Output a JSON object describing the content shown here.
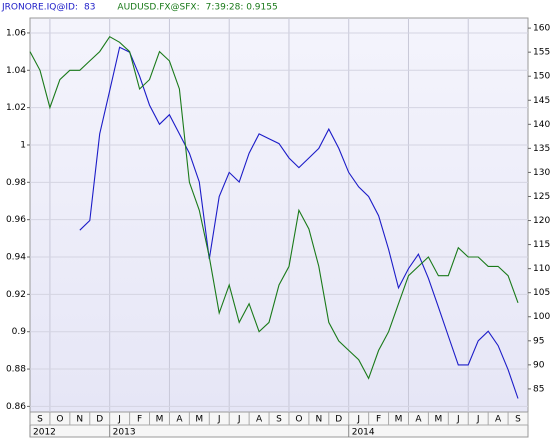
{
  "chart_data": {
    "type": "line",
    "series": [
      {
        "name": "JRONORE.IQ@ID:",
        "last_label": "83",
        "color": "#1c1cc8",
        "axis": "y2",
        "values": [
          null,
          null,
          null,
          null,
          null,
          118,
          120,
          138,
          147,
          156,
          155,
          150,
          144,
          140,
          142,
          138,
          134,
          128,
          112,
          125,
          130,
          128,
          134,
          138,
          137,
          136,
          133,
          131,
          133,
          135,
          139,
          135,
          130,
          127,
          125,
          121,
          114,
          106,
          110,
          113,
          108,
          102,
          96,
          90,
          90,
          95,
          97,
          94,
          89,
          83
        ]
      },
      {
        "name": "AUDUSD.FX@SFX:",
        "last_label": "7:39:28: 0.9155",
        "color": "#1a7a1a",
        "axis": "y",
        "values": [
          1.05,
          1.04,
          1.02,
          1.035,
          1.04,
          1.04,
          1.045,
          1.05,
          1.058,
          1.055,
          1.05,
          1.03,
          1.035,
          1.05,
          1.045,
          1.03,
          0.98,
          0.965,
          0.94,
          0.91,
          0.925,
          0.905,
          0.915,
          0.9,
          0.905,
          0.925,
          0.935,
          0.965,
          0.955,
          0.935,
          0.905,
          0.895,
          0.89,
          0.885,
          0.875,
          0.89,
          0.9,
          0.915,
          0.93,
          0.935,
          0.94,
          0.93,
          0.93,
          0.945,
          0.94,
          0.94,
          0.935,
          0.935,
          0.93,
          0.9155
        ]
      }
    ],
    "x": [
      0,
      0.5,
      1,
      1.5,
      2,
      2.5,
      3,
      3.5,
      4,
      4.5,
      5,
      5.5,
      6,
      6.5,
      7,
      7.5,
      8,
      8.5,
      9,
      9.5,
      10,
      10.5,
      11,
      11.5,
      12,
      12.5,
      13,
      13.5,
      14,
      14.5,
      15,
      15.5,
      16,
      16.5,
      17,
      17.5,
      18,
      18.5,
      19,
      19.5,
      20,
      20.5,
      21,
      21.5,
      22,
      22.5,
      23,
      23.5,
      24,
      24.5
    ],
    "xlim": [
      0,
      25
    ],
    "xticks": [
      {
        "value": 0.5,
        "label": "S"
      },
      {
        "value": 1.5,
        "label": "O"
      },
      {
        "value": 2.5,
        "label": "N"
      },
      {
        "value": 3.5,
        "label": "D"
      },
      {
        "value": 4.5,
        "label": "J"
      },
      {
        "value": 5.5,
        "label": "F"
      },
      {
        "value": 6.5,
        "label": "M"
      },
      {
        "value": 7.5,
        "label": "A"
      },
      {
        "value": 8.5,
        "label": "M"
      },
      {
        "value": 9.5,
        "label": "J"
      },
      {
        "value": 10.5,
        "label": "J"
      },
      {
        "value": 11.5,
        "label": "A"
      },
      {
        "value": 12.5,
        "label": "S"
      },
      {
        "value": 13.5,
        "label": "O"
      },
      {
        "value": 14.5,
        "label": "N"
      },
      {
        "value": 15.5,
        "label": "D"
      },
      {
        "value": 16.5,
        "label": "J"
      },
      {
        "value": 17.5,
        "label": "F"
      },
      {
        "value": 18.5,
        "label": "M"
      },
      {
        "value": 19.5,
        "label": "A"
      },
      {
        "value": 20.5,
        "label": "M"
      },
      {
        "value": 21.5,
        "label": "J"
      },
      {
        "value": 22.5,
        "label": "J"
      },
      {
        "value": 23.5,
        "label": "A"
      },
      {
        "value": 24.5,
        "label": "S"
      }
    ],
    "year_ticks": [
      {
        "value": 0,
        "label": "2012"
      },
      {
        "value": 4,
        "label": "2013"
      },
      {
        "value": 16,
        "label": "2014"
      }
    ],
    "xgrid": [
      1,
      4,
      7,
      10,
      13,
      16,
      19,
      22
    ],
    "ylim": [
      0.857,
      1.068
    ],
    "yticks": [
      0.86,
      0.88,
      0.9,
      0.92,
      0.94,
      0.96,
      0.98,
      1,
      1.02,
      1.04,
      1.06
    ],
    "y2lim": [
      80.2,
      162.1
    ],
    "y2ticks": [
      85,
      90,
      95,
      100,
      105,
      110,
      115,
      120,
      125,
      130,
      135,
      140,
      145,
      150,
      155,
      160
    ],
    "grid": true
  }
}
